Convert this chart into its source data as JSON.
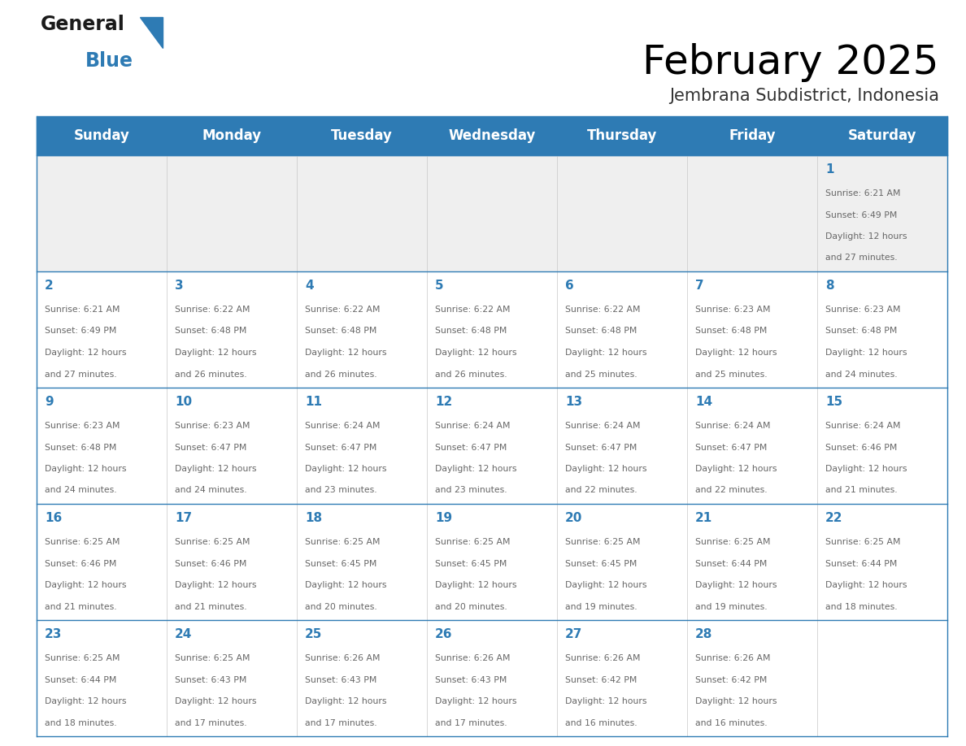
{
  "title": "February 2025",
  "subtitle": "Jembrana Subdistrict, Indonesia",
  "days_of_week": [
    "Sunday",
    "Monday",
    "Tuesday",
    "Wednesday",
    "Thursday",
    "Friday",
    "Saturday"
  ],
  "header_bg": "#2E7BB4",
  "header_text": "#FFFFFF",
  "cell_bg_light": "#EFEFEF",
  "cell_bg_white": "#FFFFFF",
  "day_number_color": "#2E7BB4",
  "info_text_color": "#666666",
  "title_color": "#000000",
  "separator_color": "#2E7BB4",
  "calendar_data": [
    [
      null,
      null,
      null,
      null,
      null,
      null,
      {
        "day": 1,
        "sunrise": "6:21 AM",
        "sunset": "6:49 PM",
        "daylight": "12 hours",
        "daylight2": "and 27 minutes."
      }
    ],
    [
      {
        "day": 2,
        "sunrise": "6:21 AM",
        "sunset": "6:49 PM",
        "daylight": "12 hours",
        "daylight2": "and 27 minutes."
      },
      {
        "day": 3,
        "sunrise": "6:22 AM",
        "sunset": "6:48 PM",
        "daylight": "12 hours",
        "daylight2": "and 26 minutes."
      },
      {
        "day": 4,
        "sunrise": "6:22 AM",
        "sunset": "6:48 PM",
        "daylight": "12 hours",
        "daylight2": "and 26 minutes."
      },
      {
        "day": 5,
        "sunrise": "6:22 AM",
        "sunset": "6:48 PM",
        "daylight": "12 hours",
        "daylight2": "and 26 minutes."
      },
      {
        "day": 6,
        "sunrise": "6:22 AM",
        "sunset": "6:48 PM",
        "daylight": "12 hours",
        "daylight2": "and 25 minutes."
      },
      {
        "day": 7,
        "sunrise": "6:23 AM",
        "sunset": "6:48 PM",
        "daylight": "12 hours",
        "daylight2": "and 25 minutes."
      },
      {
        "day": 8,
        "sunrise": "6:23 AM",
        "sunset": "6:48 PM",
        "daylight": "12 hours",
        "daylight2": "and 24 minutes."
      }
    ],
    [
      {
        "day": 9,
        "sunrise": "6:23 AM",
        "sunset": "6:48 PM",
        "daylight": "12 hours",
        "daylight2": "and 24 minutes."
      },
      {
        "day": 10,
        "sunrise": "6:23 AM",
        "sunset": "6:47 PM",
        "daylight": "12 hours",
        "daylight2": "and 24 minutes."
      },
      {
        "day": 11,
        "sunrise": "6:24 AM",
        "sunset": "6:47 PM",
        "daylight": "12 hours",
        "daylight2": "and 23 minutes."
      },
      {
        "day": 12,
        "sunrise": "6:24 AM",
        "sunset": "6:47 PM",
        "daylight": "12 hours",
        "daylight2": "and 23 minutes."
      },
      {
        "day": 13,
        "sunrise": "6:24 AM",
        "sunset": "6:47 PM",
        "daylight": "12 hours",
        "daylight2": "and 22 minutes."
      },
      {
        "day": 14,
        "sunrise": "6:24 AM",
        "sunset": "6:47 PM",
        "daylight": "12 hours",
        "daylight2": "and 22 minutes."
      },
      {
        "day": 15,
        "sunrise": "6:24 AM",
        "sunset": "6:46 PM",
        "daylight": "12 hours",
        "daylight2": "and 21 minutes."
      }
    ],
    [
      {
        "day": 16,
        "sunrise": "6:25 AM",
        "sunset": "6:46 PM",
        "daylight": "12 hours",
        "daylight2": "and 21 minutes."
      },
      {
        "day": 17,
        "sunrise": "6:25 AM",
        "sunset": "6:46 PM",
        "daylight": "12 hours",
        "daylight2": "and 21 minutes."
      },
      {
        "day": 18,
        "sunrise": "6:25 AM",
        "sunset": "6:45 PM",
        "daylight": "12 hours",
        "daylight2": "and 20 minutes."
      },
      {
        "day": 19,
        "sunrise": "6:25 AM",
        "sunset": "6:45 PM",
        "daylight": "12 hours",
        "daylight2": "and 20 minutes."
      },
      {
        "day": 20,
        "sunrise": "6:25 AM",
        "sunset": "6:45 PM",
        "daylight": "12 hours",
        "daylight2": "and 19 minutes."
      },
      {
        "day": 21,
        "sunrise": "6:25 AM",
        "sunset": "6:44 PM",
        "daylight": "12 hours",
        "daylight2": "and 19 minutes."
      },
      {
        "day": 22,
        "sunrise": "6:25 AM",
        "sunset": "6:44 PM",
        "daylight": "12 hours",
        "daylight2": "and 18 minutes."
      }
    ],
    [
      {
        "day": 23,
        "sunrise": "6:25 AM",
        "sunset": "6:44 PM",
        "daylight": "12 hours",
        "daylight2": "and 18 minutes."
      },
      {
        "day": 24,
        "sunrise": "6:25 AM",
        "sunset": "6:43 PM",
        "daylight": "12 hours",
        "daylight2": "and 17 minutes."
      },
      {
        "day": 25,
        "sunrise": "6:26 AM",
        "sunset": "6:43 PM",
        "daylight": "12 hours",
        "daylight2": "and 17 minutes."
      },
      {
        "day": 26,
        "sunrise": "6:26 AM",
        "sunset": "6:43 PM",
        "daylight": "12 hours",
        "daylight2": "and 17 minutes."
      },
      {
        "day": 27,
        "sunrise": "6:26 AM",
        "sunset": "6:42 PM",
        "daylight": "12 hours",
        "daylight2": "and 16 minutes."
      },
      {
        "day": 28,
        "sunrise": "6:26 AM",
        "sunset": "6:42 PM",
        "daylight": "12 hours",
        "daylight2": "and 16 minutes."
      },
      null
    ]
  ]
}
